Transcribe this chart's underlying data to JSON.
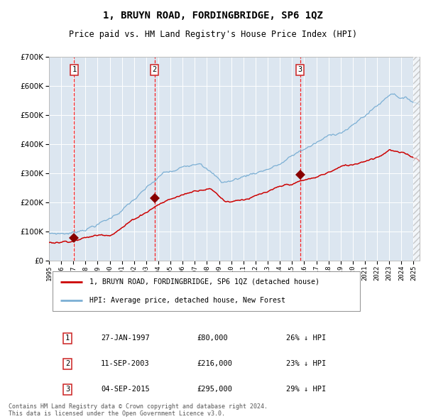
{
  "title": "1, BRUYN ROAD, FORDINGBRIDGE, SP6 1QZ",
  "subtitle": "Price paid vs. HM Land Registry's House Price Index (HPI)",
  "background_color": "#dce6f0",
  "plot_bg_color": "#dce6f0",
  "hpi_color": "#7bafd4",
  "price_color": "#cc0000",
  "marker_color": "#880000",
  "ylim": [
    0,
    700000
  ],
  "yticks": [
    0,
    100000,
    200000,
    300000,
    400000,
    500000,
    600000,
    700000
  ],
  "sales": [
    {
      "date_num": 1997.07,
      "price": 80000,
      "label": "1"
    },
    {
      "date_num": 2003.69,
      "price": 216000,
      "label": "2"
    },
    {
      "date_num": 2015.67,
      "price": 295000,
      "label": "3"
    }
  ],
  "sale_dates_display": [
    "27-JAN-1997",
    "11-SEP-2003",
    "04-SEP-2015"
  ],
  "sale_prices_display": [
    "£80,000",
    "£216,000",
    "£295,000"
  ],
  "sale_hpi_display": [
    "26% ↓ HPI",
    "23% ↓ HPI",
    "29% ↓ HPI"
  ],
  "legend_property": "1, BRUYN ROAD, FORDINGBRIDGE, SP6 1QZ (detached house)",
  "legend_hpi": "HPI: Average price, detached house, New Forest",
  "footer": "Contains HM Land Registry data © Crown copyright and database right 2024.\nThis data is licensed under the Open Government Licence v3.0.",
  "xmin": 1995.0,
  "xmax": 2025.5
}
